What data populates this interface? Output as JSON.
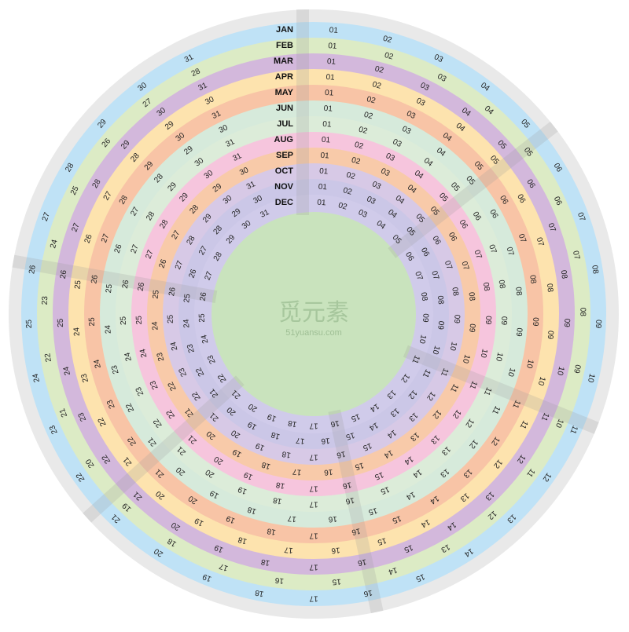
{
  "rings": [
    {
      "month": "JAN",
      "days": 31,
      "color": "#bfe2f6"
    },
    {
      "month": "FEB",
      "days": 28,
      "color": "#dcebc5"
    },
    {
      "month": "MAR",
      "days": 31,
      "color": "#d3b8dc"
    },
    {
      "month": "APR",
      "days": 30,
      "color": "#fde3ae"
    },
    {
      "month": "MAY",
      "days": 31,
      "color": "#f8c4a6"
    },
    {
      "month": "JUN",
      "days": 30,
      "color": "#d6eadb"
    },
    {
      "month": "JUL",
      "days": 31,
      "color": "#dcecd9"
    },
    {
      "month": "AUG",
      "days": 31,
      "color": "#f6c5dd"
    },
    {
      "month": "SEP",
      "days": 30,
      "color": "#f8caa9"
    },
    {
      "month": "OCT",
      "days": 31,
      "color": "#d7c9e6"
    },
    {
      "month": "NOV",
      "days": 30,
      "color": "#cbc7e7"
    },
    {
      "month": "DEC",
      "days": 31,
      "color": "#d0cbea"
    }
  ],
  "day_labels": [
    "01",
    "02",
    "03",
    "04",
    "05",
    "06",
    "07",
    "08",
    "09",
    "10",
    "11",
    "12",
    "13",
    "14",
    "15",
    "16",
    "17",
    "18",
    "19",
    "20",
    "21",
    "22",
    "23",
    "24",
    "25",
    "26",
    "27",
    "28",
    "29",
    "30",
    "31"
  ],
  "watermark": {
    "name": "觅元素",
    "site": "51yuansu.com"
  }
}
